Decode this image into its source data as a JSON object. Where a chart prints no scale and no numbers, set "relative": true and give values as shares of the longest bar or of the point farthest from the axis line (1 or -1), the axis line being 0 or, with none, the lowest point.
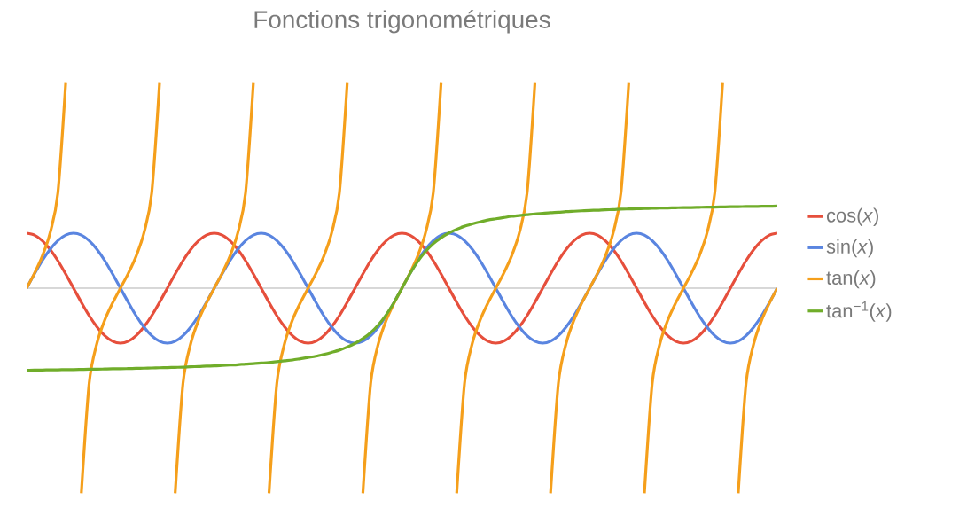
{
  "chart_data": {
    "type": "line",
    "title": "Fonctions trigonométriques",
    "relative": true,
    "legend": "right",
    "categories": [
      null,
      null,
      null,
      null,
      null,
      null,
      null,
      null,
      null,
      null,
      null,
      null,
      null,
      null,
      null,
      null,
      null,
      null,
      null,
      null,
      null,
      null,
      null,
      null,
      null,
      null,
      null,
      null,
      null,
      null,
      null,
      null,
      null,
      null,
      null,
      null,
      null,
      null,
      null,
      null,
      null,
      null,
      null,
      null,
      null,
      null,
      null,
      null,
      null,
      null,
      null,
      null,
      null,
      null,
      null,
      null,
      null,
      null,
      null,
      null,
      null,
      null,
      null,
      null,
      null,
      null,
      null,
      null,
      null,
      null,
      null,
      null,
      null,
      null,
      null,
      null,
      null,
      null,
      null,
      null,
      null,
      null,
      null,
      null,
      null,
      null,
      null,
      null,
      null,
      null,
      null,
      null,
      null,
      null,
      null,
      null,
      null
    ],
    "series": [
      {
        "name": "cos(*x*)",
        "color": "#e64f3c",
        "values": [
          0.268,
          0.259,
          0.232,
          0.189,
          0.134,
          0.069,
          0,
          -0.069,
          -0.134,
          -0.189,
          -0.232,
          -0.259,
          -0.268,
          -0.259,
          -0.232,
          -0.189,
          -0.134,
          -0.069,
          0,
          0.069,
          0.134,
          0.189,
          0.232,
          0.259,
          0.268,
          0.259,
          0.232,
          0.189,
          0.134,
          0.069,
          0,
          -0.069,
          -0.134,
          -0.189,
          -0.232,
          -0.259,
          -0.268,
          -0.259,
          -0.232,
          -0.189,
          -0.134,
          -0.069,
          0,
          0.069,
          0.134,
          0.189,
          0.232,
          0.259,
          0.268,
          0.259,
          0.232,
          0.189,
          0.134,
          0.069,
          0,
          -0.069,
          -0.134,
          -0.189,
          -0.232,
          -0.259,
          -0.268,
          -0.259,
          -0.232,
          -0.189,
          -0.134,
          -0.069,
          0,
          0.069,
          0.134,
          0.189,
          0.232,
          0.259,
          0.268,
          0.259,
          0.232,
          0.189,
          0.134,
          0.069,
          0,
          -0.069,
          -0.134,
          -0.189,
          -0.232,
          -0.259,
          -0.268,
          -0.259,
          -0.232,
          -0.189,
          -0.134,
          -0.069,
          0,
          0.069,
          0.134,
          0.189,
          0.232,
          0.259,
          0.268
        ]
      },
      {
        "name": "sin(*x*)",
        "color": "#5a85e0",
        "values": [
          0,
          0.069,
          0.134,
          0.189,
          0.232,
          0.259,
          0.268,
          0.259,
          0.232,
          0.189,
          0.134,
          0.069,
          0,
          -0.069,
          -0.134,
          -0.189,
          -0.232,
          -0.259,
          -0.268,
          -0.259,
          -0.232,
          -0.189,
          -0.134,
          -0.069,
          0,
          0.069,
          0.134,
          0.189,
          0.232,
          0.259,
          0.268,
          0.259,
          0.232,
          0.189,
          0.134,
          0.069,
          0,
          -0.069,
          -0.134,
          -0.189,
          -0.232,
          -0.259,
          -0.268,
          -0.259,
          -0.232,
          -0.189,
          -0.134,
          -0.069,
          0,
          0.069,
          0.134,
          0.189,
          0.232,
          0.259,
          0.268,
          0.259,
          0.232,
          0.189,
          0.134,
          0.069,
          0,
          -0.069,
          -0.134,
          -0.189,
          -0.232,
          -0.259,
          -0.268,
          -0.259,
          -0.232,
          -0.189,
          -0.134,
          -0.069,
          0,
          0.069,
          0.134,
          0.189,
          0.232,
          0.259,
          0.268,
          0.259,
          0.232,
          0.189,
          0.134,
          0.069,
          0,
          -0.069,
          -0.134,
          -0.189,
          -0.232,
          -0.259,
          -0.268,
          -0.259,
          -0.232,
          -0.189,
          -0.134,
          -0.069,
          0
        ]
      },
      {
        "name": "tan(*x*)",
        "color": "#f59f1b",
        "values": [
          0,
          0.072,
          0.155,
          0.268,
          0.464,
          1,
          null,
          -1,
          -0.464,
          -0.268,
          -0.155,
          -0.072,
          0,
          0.072,
          0.155,
          0.268,
          0.464,
          1,
          null,
          -1,
          -0.464,
          -0.268,
          -0.155,
          -0.072,
          0,
          0.072,
          0.155,
          0.268,
          0.464,
          1,
          null,
          -1,
          -0.464,
          -0.268,
          -0.155,
          -0.072,
          0,
          0.072,
          0.155,
          0.268,
          0.464,
          1,
          null,
          -1,
          -0.464,
          -0.268,
          -0.155,
          -0.072,
          0,
          0.072,
          0.155,
          0.268,
          0.464,
          1,
          null,
          -1,
          -0.464,
          -0.268,
          -0.155,
          -0.072,
          0,
          0.072,
          0.155,
          0.268,
          0.464,
          1,
          null,
          -1,
          -0.464,
          -0.268,
          -0.155,
          -0.072,
          0,
          0.072,
          0.155,
          0.268,
          0.464,
          1,
          null,
          -1,
          -0.464,
          -0.268,
          -0.155,
          -0.072,
          0,
          0.072,
          0.155,
          0.268,
          0.464,
          1,
          null,
          -1,
          -0.464,
          -0.268,
          -0.155,
          -0.072,
          0
        ]
      },
      {
        "name": "tan$^{−1}$(*x*)",
        "color": "#70ad2a",
        "values": [
          -0.4,
          -0.399,
          -0.399,
          -0.398,
          -0.398,
          -0.397,
          -0.397,
          -0.396,
          -0.395,
          -0.395,
          -0.394,
          -0.393,
          -0.393,
          -0.392,
          -0.391,
          -0.39,
          -0.389,
          -0.388,
          -0.387,
          -0.386,
          -0.385,
          -0.383,
          -0.382,
          -0.38,
          -0.379,
          -0.377,
          -0.375,
          -0.373,
          -0.37,
          -0.368,
          -0.365,
          -0.362,
          -0.358,
          -0.354,
          -0.35,
          -0.344,
          -0.338,
          -0.332,
          -0.323,
          -0.313,
          -0.302,
          -0.287,
          -0.269,
          -0.246,
          -0.217,
          -0.178,
          -0.129,
          -0.069,
          0,
          0.069,
          0.129,
          0.178,
          0.217,
          0.246,
          0.269,
          0.287,
          0.302,
          0.313,
          0.323,
          0.332,
          0.338,
          0.344,
          0.35,
          0.354,
          0.358,
          0.362,
          0.365,
          0.368,
          0.37,
          0.373,
          0.375,
          0.377,
          0.379,
          0.38,
          0.382,
          0.383,
          0.385,
          0.386,
          0.387,
          0.388,
          0.389,
          0.39,
          0.391,
          0.392,
          0.393,
          0.393,
          0.394,
          0.395,
          0.395,
          0.396,
          0.397,
          0.397,
          0.398,
          0.398,
          0.399,
          0.399,
          0.4
        ]
      }
    ]
  }
}
